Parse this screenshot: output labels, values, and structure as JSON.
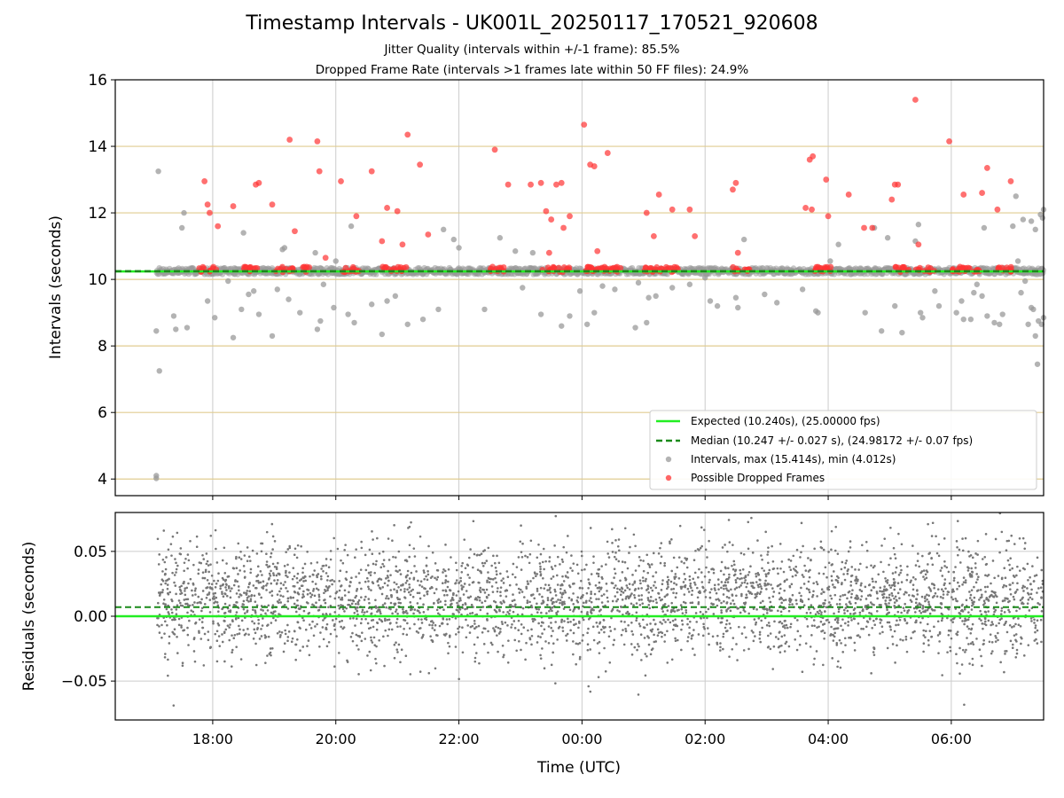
{
  "header": {
    "title": "Timestamp Intervals - UK001L_20250117_170521_920608",
    "subtitle_1": "Jitter Quality (intervals within +/-1 frame): 85.5%",
    "subtitle_2": "Dropped Frame Rate (intervals >1 frames late within 50 FF files): 24.9%"
  },
  "colors": {
    "interval_points": "#999999",
    "dropped_points": "#ff3333",
    "expected_line": "#22ee22",
    "median_line": "#1a8a1a",
    "hgrid": "#e0cc90",
    "vgrid": "#cccccc",
    "residual_points": "#777777"
  },
  "chart_data": [
    {
      "type": "scatter",
      "title": "",
      "xlabel": "",
      "ylabel": "Intervals (seconds)",
      "xlim": [
        "16:25",
        "07:30"
      ],
      "ylim": [
        3.5,
        16
      ],
      "x_ticks": [
        "18:00",
        "20:00",
        "22:00",
        "00:00",
        "02:00",
        "04:00",
        "06:00"
      ],
      "y_ticks": [
        "4",
        "6",
        "8",
        "10",
        "12",
        "14",
        "16"
      ],
      "grid": true,
      "legend_position": "lower-right",
      "lines": [
        {
          "name": "Expected (10.240s), (25.00000 fps)",
          "y": 10.24,
          "style": "solid"
        },
        {
          "name": "Median (10.247 +/- 0.027 s), (24.98172 +/- 0.07 fps)",
          "y": 10.247,
          "style": "dashed"
        }
      ],
      "series": [
        {
          "name": "Intervals, max (15.414s), min (4.012s)",
          "marker": "circle",
          "baseline_band": [
            10.15,
            10.35
          ],
          "baseline_time_range": [
            "17:05",
            "07:30"
          ],
          "outliers": [
            [
              "17:05",
              4.1
            ],
            [
              "17:05",
              4.02
            ],
            [
              "17:07",
              13.25
            ],
            [
              "17:08",
              7.25
            ],
            [
              "17:05",
              8.45
            ],
            [
              "17:22",
              8.9
            ],
            [
              "17:24",
              8.5
            ],
            [
              "17:30",
              11.55
            ],
            [
              "17:32",
              12.0
            ],
            [
              "17:35",
              8.55
            ],
            [
              "17:55",
              9.35
            ],
            [
              "18:02",
              8.85
            ],
            [
              "18:15",
              9.95
            ],
            [
              "18:20",
              8.25
            ],
            [
              "18:28",
              9.1
            ],
            [
              "18:30",
              11.4
            ],
            [
              "18:35",
              9.55
            ],
            [
              "18:40",
              9.65
            ],
            [
              "18:45",
              8.95
            ],
            [
              "18:58",
              8.3
            ],
            [
              "19:03",
              9.7
            ],
            [
              "19:08",
              10.9
            ],
            [
              "19:10",
              10.95
            ],
            [
              "19:14",
              9.4
            ],
            [
              "19:25",
              9.0
            ],
            [
              "19:40",
              10.8
            ],
            [
              "19:42",
              8.5
            ],
            [
              "19:45",
              8.75
            ],
            [
              "19:48",
              9.85
            ],
            [
              "19:58",
              9.15
            ],
            [
              "20:00",
              10.55
            ],
            [
              "20:12",
              8.95
            ],
            [
              "20:15",
              11.6
            ],
            [
              "20:18",
              8.7
            ],
            [
              "20:35",
              9.25
            ],
            [
              "20:45",
              8.35
            ],
            [
              "20:50",
              9.35
            ],
            [
              "20:58",
              9.5
            ],
            [
              "21:10",
              8.65
            ],
            [
              "21:25",
              8.8
            ],
            [
              "21:40",
              9.1
            ],
            [
              "21:45",
              11.5
            ],
            [
              "21:55",
              11.2
            ],
            [
              "22:00",
              10.95
            ],
            [
              "22:25",
              9.1
            ],
            [
              "22:40",
              11.25
            ],
            [
              "22:55",
              10.85
            ],
            [
              "23:02",
              9.75
            ],
            [
              "23:12",
              10.8
            ],
            [
              "23:20",
              8.95
            ],
            [
              "23:40",
              8.6
            ],
            [
              "23:48",
              8.9
            ],
            [
              "23:58",
              9.65
            ],
            [
              "00:05",
              8.65
            ],
            [
              "00:12",
              9.0
            ],
            [
              "00:20",
              9.8
            ],
            [
              "00:32",
              9.7
            ],
            [
              "00:55",
              9.9
            ],
            [
              "00:52",
              8.55
            ],
            [
              "01:03",
              8.7
            ],
            [
              "01:05",
              9.45
            ],
            [
              "01:12",
              9.5
            ],
            [
              "01:28",
              9.75
            ],
            [
              "01:45",
              9.85
            ],
            [
              "02:00",
              10.05
            ],
            [
              "02:05",
              9.35
            ],
            [
              "02:12",
              9.2
            ],
            [
              "02:30",
              9.45
            ],
            [
              "02:32",
              9.15
            ],
            [
              "02:38",
              11.2
            ],
            [
              "02:58",
              9.55
            ],
            [
              "03:10",
              9.3
            ],
            [
              "03:35",
              9.7
            ],
            [
              "03:48",
              9.05
            ],
            [
              "03:50",
              9.0
            ],
            [
              "04:02",
              10.55
            ],
            [
              "04:10",
              11.05
            ],
            [
              "04:36",
              9.0
            ],
            [
              "04:45",
              11.55
            ],
            [
              "04:52",
              8.45
            ],
            [
              "04:58",
              11.25
            ],
            [
              "05:05",
              9.2
            ],
            [
              "05:12",
              8.4
            ],
            [
              "05:25",
              11.15
            ],
            [
              "05:28",
              11.65
            ],
            [
              "05:30",
              9.0
            ],
            [
              "05:32",
              8.85
            ],
            [
              "05:44",
              9.65
            ],
            [
              "05:48",
              9.2
            ],
            [
              "06:05",
              9.0
            ],
            [
              "06:10",
              9.35
            ],
            [
              "06:12",
              8.8
            ],
            [
              "06:19",
              8.8
            ],
            [
              "06:25",
              9.85
            ],
            [
              "06:30",
              9.5
            ],
            [
              "06:32",
              11.55
            ],
            [
              "06:35",
              8.9
            ],
            [
              "06:42",
              8.7
            ],
            [
              "06:50",
              8.95
            ],
            [
              "07:00",
              11.6
            ],
            [
              "07:03",
              12.5
            ],
            [
              "07:10",
              11.8
            ],
            [
              "07:12",
              9.95
            ],
            [
              "07:18",
              9.15
            ],
            [
              "07:20",
              9.1
            ],
            [
              "07:22",
              11.5
            ],
            [
              "07:27",
              11.95
            ],
            [
              "07:05",
              10.55
            ],
            [
              "07:08",
              9.6
            ],
            [
              "07:15",
              8.65
            ],
            [
              "07:28",
              8.65
            ],
            [
              "07:30",
              12.1
            ],
            [
              "07:25",
              8.75
            ],
            [
              "07:18",
              11.75
            ],
            [
              "07:22",
              8.3
            ],
            [
              "07:24",
              7.45
            ],
            [
              "07:29",
              11.85
            ],
            [
              "07:30",
              8.85
            ],
            [
              "06:22",
              9.6
            ],
            [
              "06:47",
              8.65
            ]
          ]
        },
        {
          "name": "Possible Dropped Frames",
          "marker": "circle",
          "points": [
            [
              "17:52",
              12.95
            ],
            [
              "17:57",
              12.0
            ],
            [
              "18:05",
              11.6
            ],
            [
              "17:55",
              12.25
            ],
            [
              "18:20",
              12.2
            ],
            [
              "18:42",
              12.85
            ],
            [
              "18:45",
              12.9
            ],
            [
              "18:58",
              12.25
            ],
            [
              "19:15",
              14.2
            ],
            [
              "19:20",
              11.45
            ],
            [
              "19:42",
              14.15
            ],
            [
              "19:44",
              13.25
            ],
            [
              "19:50",
              10.65
            ],
            [
              "20:05",
              12.95
            ],
            [
              "20:20",
              11.9
            ],
            [
              "20:35",
              13.25
            ],
            [
              "20:45",
              11.15
            ],
            [
              "20:50",
              12.15
            ],
            [
              "21:00",
              12.05
            ],
            [
              "21:05",
              11.05
            ],
            [
              "21:10",
              14.35
            ],
            [
              "21:22",
              13.45
            ],
            [
              "21:30",
              11.35
            ],
            [
              "22:35",
              13.9
            ],
            [
              "22:48",
              12.85
            ],
            [
              "23:10",
              12.85
            ],
            [
              "23:20",
              12.9
            ],
            [
              "23:25",
              12.05
            ],
            [
              "23:30",
              11.8
            ],
            [
              "23:35",
              12.85
            ],
            [
              "23:40",
              12.9
            ],
            [
              "23:42",
              11.55
            ],
            [
              "23:28",
              10.8
            ],
            [
              "23:48",
              11.9
            ],
            [
              "00:02",
              14.65
            ],
            [
              "00:08",
              13.45
            ],
            [
              "00:12",
              13.4
            ],
            [
              "00:15",
              10.85
            ],
            [
              "00:25",
              13.8
            ],
            [
              "01:03",
              12.0
            ],
            [
              "01:10",
              11.3
            ],
            [
              "01:15",
              12.55
            ],
            [
              "01:28",
              12.1
            ],
            [
              "01:45",
              12.1
            ],
            [
              "01:50",
              11.3
            ],
            [
              "02:27",
              12.7
            ],
            [
              "02:30",
              12.9
            ],
            [
              "02:32",
              10.8
            ],
            [
              "03:38",
              12.15
            ],
            [
              "03:42",
              13.6
            ],
            [
              "03:45",
              13.7
            ],
            [
              "03:44",
              12.1
            ],
            [
              "03:58",
              13.0
            ],
            [
              "04:00",
              11.9
            ],
            [
              "04:20",
              12.55
            ],
            [
              "04:35",
              11.55
            ],
            [
              "04:43",
              11.55
            ],
            [
              "05:02",
              12.4
            ],
            [
              "05:05",
              12.85
            ],
            [
              "05:08",
              12.85
            ],
            [
              "05:25",
              15.4
            ],
            [
              "05:28",
              11.05
            ],
            [
              "05:58",
              14.15
            ],
            [
              "06:12",
              12.55
            ],
            [
              "06:30",
              12.6
            ],
            [
              "06:35",
              13.35
            ],
            [
              "06:45",
              12.1
            ],
            [
              "06:58",
              12.95
            ]
          ],
          "clusters_near_median": [
            "17:50",
            "18:00",
            "18:35",
            "18:40",
            "19:05",
            "19:15",
            "19:30",
            "20:10",
            "20:20",
            "20:50",
            "21:00",
            "21:05",
            "22:35",
            "22:40",
            "23:25",
            "23:35",
            "23:45",
            "00:05",
            "00:10",
            "00:15",
            "00:20",
            "00:30",
            "00:35",
            "01:05",
            "01:10",
            "01:20",
            "01:30",
            "02:30",
            "02:40",
            "03:50",
            "03:55",
            "04:00",
            "05:10",
            "05:15",
            "05:30",
            "05:40",
            "06:05",
            "06:10",
            "06:15",
            "06:25",
            "06:50",
            "06:55"
          ]
        }
      ]
    },
    {
      "type": "scatter",
      "title": "",
      "xlabel": "Time (UTC)",
      "ylabel": "Residuals (seconds)",
      "xlim": [
        "16:25",
        "07:30"
      ],
      "ylim": [
        -0.08,
        0.08
      ],
      "x_ticks": [
        "18:00",
        "20:00",
        "22:00",
        "00:00",
        "02:00",
        "04:00",
        "06:00"
      ],
      "y_ticks": [
        "0.05",
        "0.00",
        "−0.05"
      ],
      "grid": true,
      "lines": [
        {
          "name": "",
          "y": 0.0,
          "style": "solid"
        },
        {
          "name": "",
          "y": 0.007,
          "style": "dashed"
        }
      ],
      "series": [
        {
          "name": "",
          "marker": "dot",
          "mean": 0.012,
          "spread": 0.022,
          "time_range": [
            "17:05",
            "07:30"
          ],
          "count": 3600
        }
      ]
    }
  ]
}
